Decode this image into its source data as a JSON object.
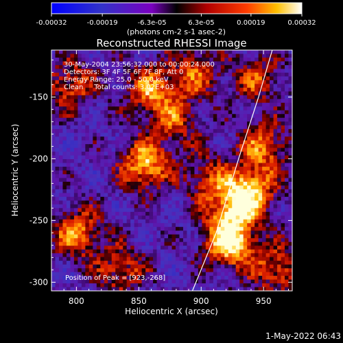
{
  "chart_data": {
    "type": "heatmap",
    "title": "Reconstructed RHESSI Image",
    "xlabel": "Heliocentric X (arcsec)",
    "ylabel": "Heliocentric Y (arcsec)",
    "xlim": [
      780,
      973
    ],
    "ylim": [
      -307,
      -112
    ],
    "xticks": [
      800,
      850,
      900,
      950
    ],
    "yticks": [
      -150,
      -200,
      -250,
      -300
    ],
    "colorbar": {
      "ticks": [
        "-0.00032",
        "-0.00019",
        "-6.3e-05",
        "6.3e-05",
        "0.00019",
        "0.00032"
      ],
      "unit_label": "(photons cm-2 s-1 asec-2)",
      "range": [
        -0.00032,
        0.00032
      ]
    },
    "annotations": [
      "30-May-2004 23:56:32.000 to 00:00:24.000",
      "Detectors: 3F 4F 5F 6F 7F 8F, Att 0",
      "Energy Range: 25.0 - 50.0 keV",
      "Clean     Total counts: 3.02E+03"
    ],
    "peak_label": "Position of Peak = [923,-268]",
    "peak": [
      923,
      -268
    ],
    "limb_curve": [
      [
        893,
        -307
      ],
      [
        912,
        -260
      ],
      [
        930,
        -200
      ],
      [
        946,
        -150
      ],
      [
        957,
        -112
      ]
    ],
    "hot_spots": [
      {
        "x": 925,
        "y": -240,
        "value": 0.00022
      },
      {
        "x": 940,
        "y": -225,
        "value": 0.00024
      },
      {
        "x": 923,
        "y": -268,
        "value": 0.00032
      },
      {
        "x": 855,
        "y": -205,
        "value": 0.00026
      },
      {
        "x": 860,
        "y": -145,
        "value": 0.00022
      },
      {
        "x": 950,
        "y": -190,
        "value": 0.0002
      },
      {
        "x": 795,
        "y": -140,
        "value": 0.00018
      },
      {
        "x": 800,
        "y": -260,
        "value": 0.00022
      },
      {
        "x": 895,
        "y": -130,
        "value": 0.00017
      },
      {
        "x": 960,
        "y": -290,
        "value": 0.00018
      },
      {
        "x": 880,
        "y": -170,
        "value": 0.00015
      },
      {
        "x": 835,
        "y": -290,
        "value": 0.00017
      },
      {
        "x": 905,
        "y": -215,
        "value": 0.00014
      },
      {
        "x": 945,
        "y": -135,
        "value": 0.00016
      }
    ]
  },
  "timestamp": "1-May-2022 06:43"
}
